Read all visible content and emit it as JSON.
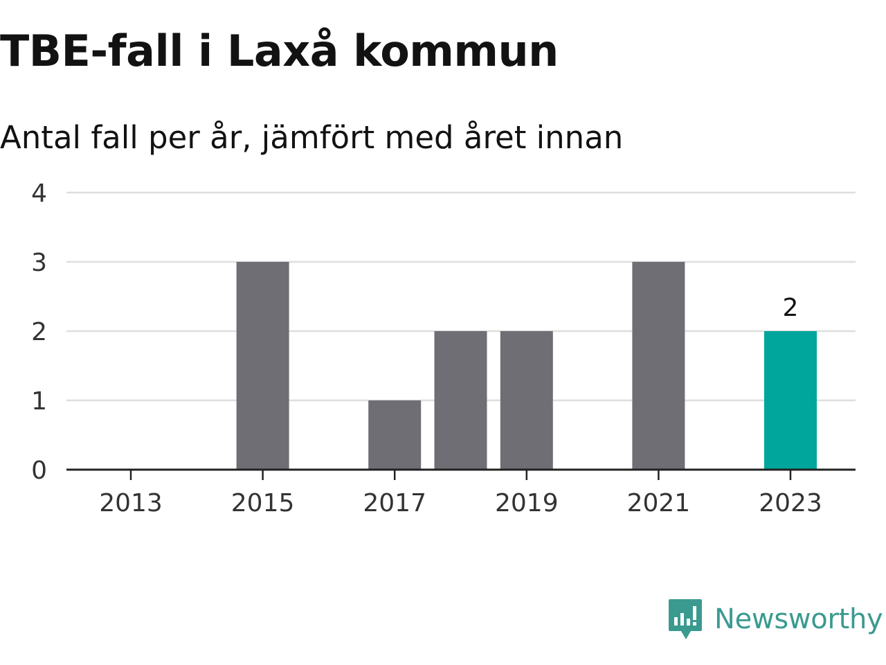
{
  "header": {
    "title": "TBE-fall i Laxå kommun",
    "subtitle": "Antal fall per år, jämfört med året innan"
  },
  "brand": {
    "name": "Newsworthy",
    "logo_icon": "bar-chart-speech-bubble-icon"
  },
  "colors": {
    "bar": "#6f6e75",
    "highlight": "#00a69b",
    "grid": "#dedede",
    "axis": "#222222",
    "text": "#121212",
    "tick_label": "#333333",
    "brand": "#3a9a90"
  },
  "chart_data": {
    "type": "bar",
    "x": [
      2013,
      2014,
      2015,
      2016,
      2017,
      2018,
      2019,
      2020,
      2021,
      2022,
      2023
    ],
    "values": [
      0,
      0,
      3,
      0,
      1,
      2,
      2,
      0,
      3,
      0,
      2
    ],
    "highlight": {
      "x": 2023,
      "value": 2,
      "label": "2"
    },
    "xticks": [
      "2013",
      "2015",
      "2017",
      "2019",
      "2021",
      "2023"
    ],
    "yticks": [
      "0",
      "1",
      "2",
      "3",
      "4"
    ],
    "ylim": [
      0,
      4
    ],
    "grid": true,
    "legend": "none"
  }
}
